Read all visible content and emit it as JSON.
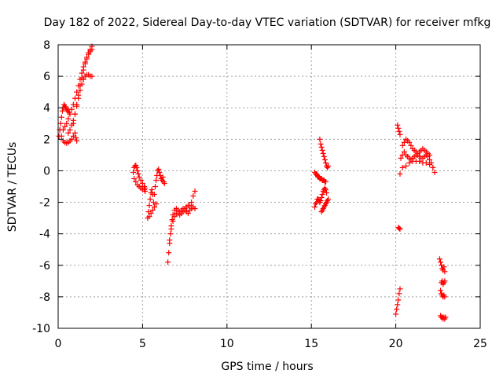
{
  "chart_data": {
    "type": "scatter",
    "title": "Day 182 of 2022, Sidereal Day-to-day VTEC variation (SDTVAR) for receiver mfkg",
    "xlabel": "GPS time / hours",
    "ylabel": "SDTVAR / TECUs",
    "xlim": [
      0,
      25
    ],
    "ylim": [
      -10,
      8
    ],
    "xticks": [
      0,
      5,
      10,
      15,
      20,
      25
    ],
    "xtick_labels": [
      "0",
      "5",
      "10",
      "15",
      "20",
      "25"
    ],
    "yticks": [
      -10,
      -8,
      -6,
      -4,
      -2,
      0,
      2,
      4,
      6,
      8
    ],
    "ytick_labels": [
      "-10",
      "-8",
      "-6",
      "-4",
      "-2",
      "0",
      "2",
      "4",
      "6",
      "8"
    ],
    "grid": true,
    "marker": "+",
    "color": "#ff0000",
    "series": [
      {
        "name": "SDTVAR",
        "segments": [
          {
            "x": [
              0.05,
              0.1,
              0.15,
              0.2,
              0.25,
              0.3,
              0.35,
              0.4,
              0.45,
              0.5,
              0.55,
              0.6,
              0.65
            ],
            "y": [
              2.2,
              2.6,
              3.0,
              3.4,
              3.8,
              4.0,
              4.2,
              4.1,
              4.0,
              3.9,
              3.8,
              3.9,
              3.7
            ]
          },
          {
            "x": [
              0.1,
              0.2,
              0.3,
              0.4,
              0.5,
              0.6,
              0.7,
              0.8,
              0.9,
              1.0,
              1.05,
              1.1
            ],
            "y": [
              2.6,
              2.2,
              1.9,
              1.8,
              1.75,
              1.8,
              1.9,
              2.0,
              2.2,
              2.4,
              2.1,
              1.9
            ]
          },
          {
            "x": [
              0.3,
              0.4,
              0.5,
              0.6,
              0.7,
              0.8,
              0.9,
              1.0,
              1.1,
              1.2,
              1.3,
              1.4,
              1.5,
              1.6,
              1.7,
              1.8,
              1.9,
              2.0
            ],
            "y": [
              2.6,
              2.8,
              3.0,
              3.3,
              3.6,
              3.9,
              4.2,
              4.6,
              5.0,
              5.4,
              5.8,
              6.2,
              6.6,
              6.9,
              7.2,
              7.5,
              7.7,
              7.9
            ]
          },
          {
            "x": [
              0.6,
              0.7,
              0.8,
              0.9,
              1.0,
              1.1,
              1.2,
              1.3,
              1.4,
              1.5,
              1.6,
              1.7,
              1.8,
              1.9,
              2.0
            ],
            "y": [
              2.4,
              2.6,
              2.9,
              3.2,
              3.6,
              4.1,
              4.6,
              5.1,
              5.5,
              5.8,
              6.0,
              6.1,
              6.1,
              6.0,
              6.0
            ]
          },
          {
            "x": [
              0.9,
              1.0,
              1.1,
              1.2,
              1.3,
              1.4,
              1.5,
              1.6,
              1.7,
              1.8,
              1.9,
              2.0
            ],
            "y": [
              3.0,
              3.6,
              4.2,
              4.8,
              5.4,
              5.9,
              6.4,
              6.8,
              7.1,
              7.4,
              7.6,
              7.7
            ]
          },
          {
            "x": [
              4.45,
              4.5,
              4.55,
              4.6,
              4.65,
              4.7,
              4.75,
              4.8,
              4.9,
              5.0,
              5.1,
              5.15
            ],
            "y": [
              -0.1,
              0.2,
              0.3,
              0.35,
              0.2,
              0.0,
              -0.2,
              -0.4,
              -0.6,
              -0.8,
              -1.0,
              -1.1
            ]
          },
          {
            "x": [
              4.5,
              4.6,
              4.7,
              4.8,
              4.9,
              5.0,
              5.1,
              5.15
            ],
            "y": [
              -0.5,
              -0.7,
              -0.9,
              -1.0,
              -1.1,
              -1.2,
              -1.2,
              -1.3
            ]
          },
          {
            "x": [
              5.3,
              5.35,
              5.4,
              5.45,
              5.5,
              5.55,
              5.6,
              5.65,
              5.7,
              5.75,
              5.8,
              5.85,
              5.9,
              5.95,
              6.0,
              6.05,
              6.1,
              6.15,
              6.2,
              6.25,
              6.3
            ],
            "y": [
              -3.0,
              -2.6,
              -2.2,
              -1.8,
              -1.4,
              -1.2,
              -1.5,
              -2.0,
              -1.5,
              -1.0,
              -0.6,
              -0.3,
              0.0,
              0.1,
              -0.1,
              -0.3,
              -0.5,
              -0.6,
              -0.4,
              -0.7,
              -0.8
            ]
          },
          {
            "x": [
              5.4,
              5.5,
              5.6,
              5.7,
              5.8
            ],
            "y": [
              -2.9,
              -2.7,
              -2.5,
              -2.3,
              -2.1
            ]
          },
          {
            "x": [
              6.5,
              6.55,
              6.6,
              6.65,
              6.7,
              6.75,
              6.8,
              6.9,
              7.0,
              7.1,
              7.2,
              7.3,
              7.4,
              7.5,
              7.6,
              7.7,
              7.8,
              7.9,
              8.0,
              8.1
            ],
            "y": [
              -5.8,
              -5.2,
              -4.6,
              -4.0,
              -3.5,
              -3.1,
              -2.8,
              -2.5,
              -2.4,
              -2.5,
              -2.6,
              -2.5,
              -2.4,
              -2.4,
              -2.3,
              -2.2,
              -2.2,
              -2.0,
              -1.6,
              -1.3
            ]
          },
          {
            "x": [
              6.6,
              6.7,
              6.8,
              6.9,
              7.0,
              7.1,
              7.2,
              7.3,
              7.4,
              7.5,
              7.6,
              7.7,
              7.8,
              7.9,
              8.0,
              8.1
            ],
            "y": [
              -4.4,
              -3.7,
              -3.2,
              -2.9,
              -2.7,
              -2.7,
              -2.8,
              -2.7,
              -2.6,
              -2.5,
              -2.6,
              -2.7,
              -2.5,
              -2.4,
              -2.3,
              -2.4
            ]
          },
          {
            "x": [
              15.2,
              15.25,
              15.3,
              15.35,
              15.4,
              15.45,
              15.5,
              15.55,
              15.6,
              15.65,
              15.7,
              15.75,
              15.8,
              15.85
            ],
            "y": [
              -0.1,
              -0.2,
              -0.2,
              -0.3,
              -0.4,
              -0.4,
              -0.5,
              -0.5,
              -0.5,
              -0.6,
              -0.6,
              -0.6,
              -0.7,
              -0.7
            ]
          },
          {
            "x": [
              15.5,
              15.55,
              15.6,
              15.65,
              15.7,
              15.75,
              15.8,
              15.85,
              15.9,
              15.95,
              16.0
            ],
            "y": [
              2.0,
              1.7,
              1.5,
              1.3,
              1.1,
              0.9,
              0.7,
              0.5,
              0.3,
              0.2,
              0.3
            ]
          },
          {
            "x": [
              15.2,
              15.25,
              15.3,
              15.35,
              15.4,
              15.45,
              15.5,
              15.55,
              15.6,
              15.65,
              15.7,
              15.75,
              15.8,
              15.85,
              15.9
            ],
            "y": [
              -2.3,
              -2.1,
              -2.0,
              -1.8,
              -1.8,
              -1.9,
              -2.0,
              -1.9,
              -1.7,
              -1.5,
              -1.3,
              -1.2,
              -1.1,
              -1.2,
              -1.4
            ]
          },
          {
            "x": [
              15.6,
              15.65,
              15.7,
              15.75,
              15.8,
              15.85,
              15.9,
              15.95,
              16.0
            ],
            "y": [
              -2.6,
              -2.5,
              -2.4,
              -2.3,
              -2.2,
              -2.1,
              -2.0,
              -1.9,
              -1.8
            ]
          },
          {
            "x": [
              20.1,
              20.15,
              20.2,
              20.25
            ],
            "y": [
              2.9,
              2.7,
              2.5,
              2.3
            ]
          },
          {
            "x": [
              20.15,
              20.2,
              20.25
            ],
            "y": [
              -3.6,
              -3.65,
              -3.7
            ]
          },
          {
            "x": [
              20.25
            ],
            "y": [
              -0.2
            ]
          },
          {
            "x": [
              20.3,
              20.4,
              20.5,
              20.6,
              20.7,
              20.8,
              20.9,
              21.0,
              21.1,
              21.2,
              21.3,
              21.4,
              21.5,
              21.6,
              21.7,
              21.8,
              21.9,
              22.0,
              22.1,
              22.2,
              22.3
            ],
            "y": [
              0.8,
              1.0,
              1.2,
              1.0,
              0.9,
              0.8,
              0.7,
              0.8,
              0.9,
              1.0,
              1.0,
              0.9,
              0.8,
              0.8,
              0.9,
              1.0,
              0.9,
              0.7,
              0.5,
              0.2,
              -0.1
            ]
          },
          {
            "x": [
              20.4,
              20.5,
              20.6,
              20.7,
              20.8,
              20.9,
              21.0,
              21.1,
              21.2,
              21.3,
              21.4,
              21.5,
              21.6,
              21.7,
              21.8,
              21.9,
              22.0
            ],
            "y": [
              1.6,
              1.8,
              2.0,
              1.9,
              1.8,
              1.6,
              1.4,
              1.3,
              1.2,
              1.1,
              1.2,
              1.3,
              1.4,
              1.3,
              1.2,
              1.1,
              1.0
            ]
          },
          {
            "x": [
              20.4,
              20.6,
              20.8,
              21.0,
              21.2,
              21.4,
              21.6,
              21.8,
              22.0,
              22.2
            ],
            "y": [
              0.2,
              0.3,
              0.5,
              0.6,
              0.6,
              0.6,
              0.5,
              0.5,
              0.4,
              0.2
            ]
          },
          {
            "x": [
              20.0,
              20.05,
              20.1,
              20.15,
              20.2,
              20.25
            ],
            "y": [
              -9.1,
              -8.8,
              -8.5,
              -8.2,
              -7.8,
              -7.5
            ]
          },
          {
            "x": [
              22.6,
              22.65,
              22.7,
              22.75,
              22.8,
              22.85,
              22.9
            ],
            "y": [
              -5.6,
              -5.8,
              -6.0,
              -6.2,
              -6.3,
              -6.1,
              -6.4
            ]
          },
          {
            "x": [
              22.7,
              22.75,
              22.8,
              22.85,
              22.9
            ],
            "y": [
              -7.1,
              -7.0,
              -7.2,
              -7.1,
              -7.0
            ]
          },
          {
            "x": [
              22.65,
              22.7,
              22.75,
              22.8,
              22.85,
              22.9
            ],
            "y": [
              -7.6,
              -7.8,
              -7.9,
              -8.0,
              -7.9,
              -8.0
            ]
          },
          {
            "x": [
              22.65,
              22.7,
              22.75,
              22.8,
              22.85,
              22.9,
              22.95
            ],
            "y": [
              -9.2,
              -9.3,
              -9.3,
              -9.4,
              -9.3,
              -9.4,
              -9.3
            ]
          }
        ]
      }
    ]
  }
}
